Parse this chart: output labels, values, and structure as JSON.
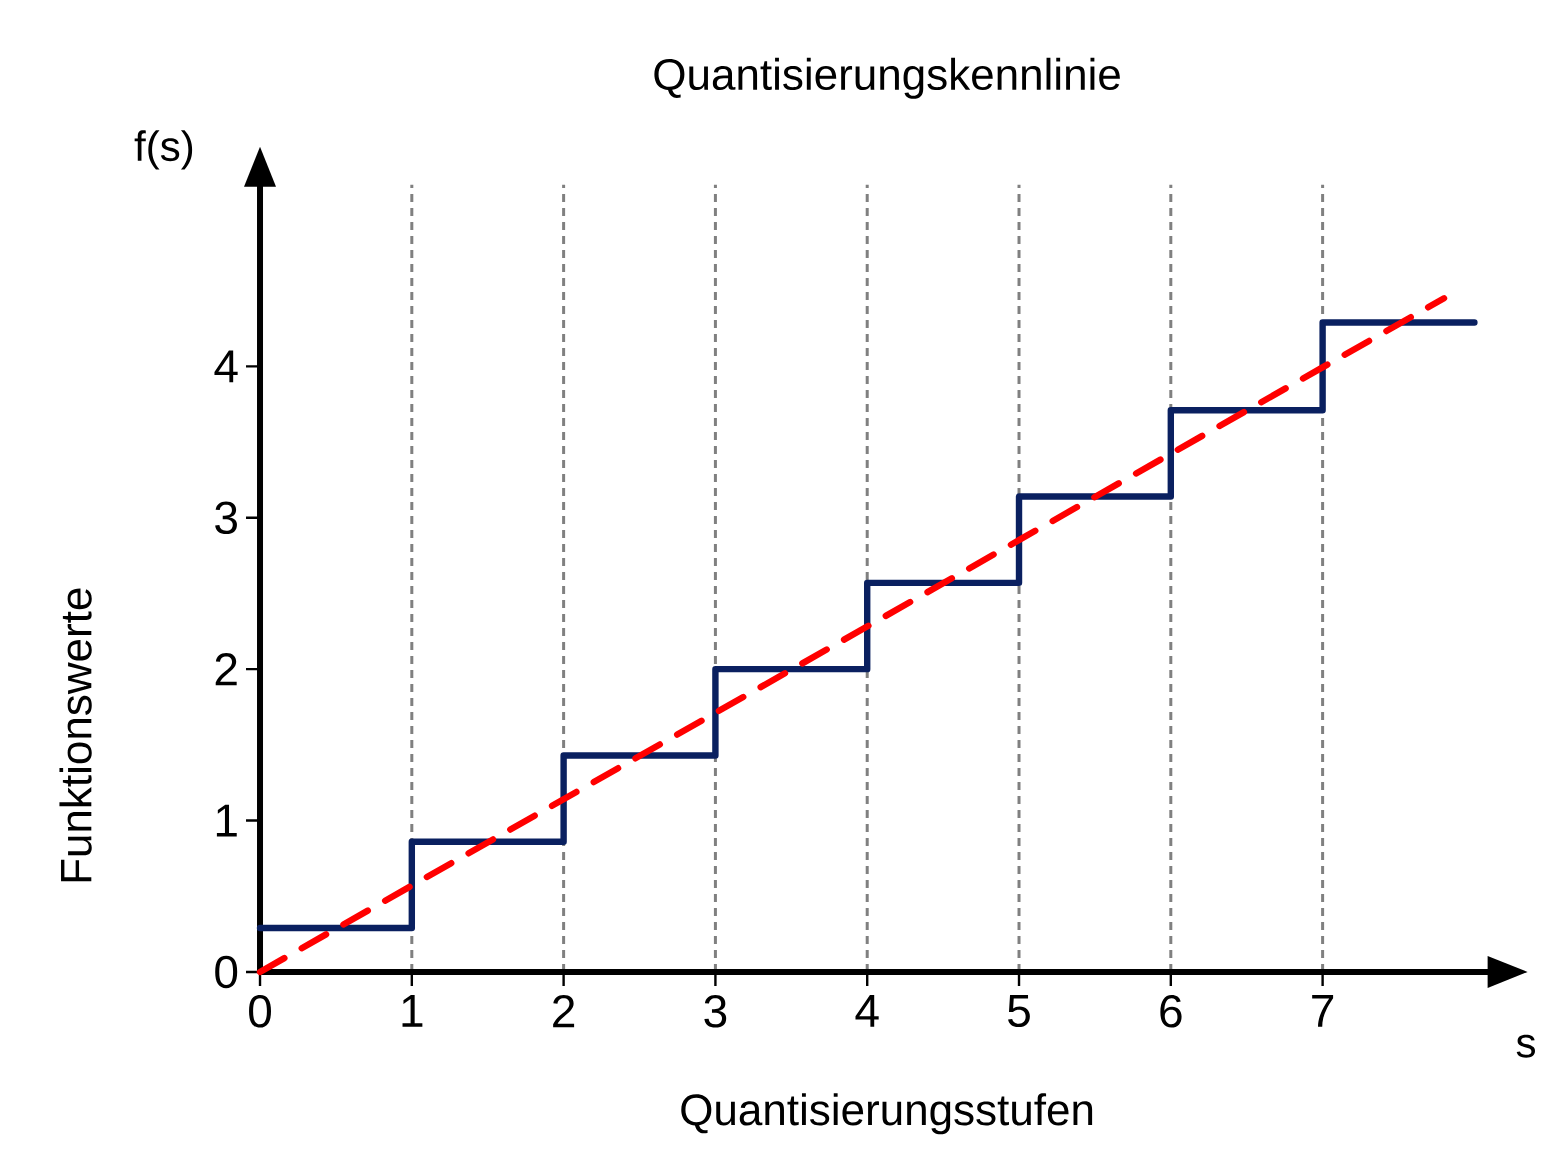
{
  "chart_data": {
    "type": "step",
    "title": "Quantisierungskennlinie",
    "xlabel": "Quantisierungsstufen",
    "ylabel": "Funktionswerte",
    "annotations": [
      "f(s)",
      "s"
    ],
    "xlim": [
      0,
      8.1
    ],
    "ylim": [
      0,
      5.2
    ],
    "xticks": [
      0,
      1,
      2,
      3,
      4,
      5,
      6,
      7
    ],
    "yticks": [
      0,
      1,
      2,
      3,
      4
    ],
    "grid": "x",
    "series": [
      {
        "color": "#0a2060",
        "line_style": "solid",
        "x": [
          0,
          1,
          2,
          3,
          4,
          5,
          6,
          7,
          8
        ],
        "values": [
          0.29,
          0.86,
          1.43,
          2.0,
          2.57,
          3.14,
          3.71,
          4.29,
          4.29
        ]
      },
      {
        "type": "line",
        "color": "#ff0000",
        "line_style": "dashed",
        "x": [
          0,
          7.8
        ],
        "values": [
          0,
          4.45
        ]
      }
    ]
  }
}
